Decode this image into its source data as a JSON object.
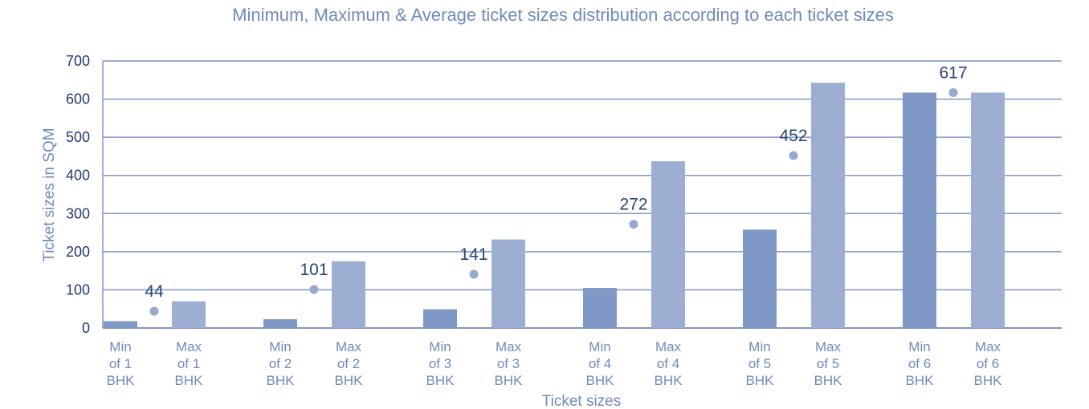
{
  "chart_data": {
    "type": "bar",
    "title": "Minimum, Maximum & Average ticket sizes distribution according to each ticket sizes",
    "xlabel": "Ticket sizes",
    "ylabel": "Ticket sizes in SQM",
    "ylim": [
      0,
      700
    ],
    "yticks": [
      0,
      100,
      200,
      300,
      400,
      500,
      600,
      700
    ],
    "grid": true,
    "groups": [
      {
        "min_label": [
          "Min",
          "of 1",
          "BHK"
        ],
        "max_label": [
          "Max",
          "of 1",
          "BHK"
        ],
        "min": 18,
        "max": 70,
        "avg": 44
      },
      {
        "min_label": [
          "Min",
          "of 2",
          "BHK"
        ],
        "max_label": [
          "Max",
          "of 2",
          "BHK"
        ],
        "min": 23,
        "max": 175,
        "avg": 101
      },
      {
        "min_label": [
          "Min",
          "of 3",
          "BHK"
        ],
        "max_label": [
          "Max",
          "of 3",
          "BHK"
        ],
        "min": 49,
        "max": 232,
        "avg": 141
      },
      {
        "min_label": [
          "Min",
          "of 4",
          "BHK"
        ],
        "max_label": [
          "Max",
          "of 4",
          "BHK"
        ],
        "min": 105,
        "max": 437,
        "avg": 272
      },
      {
        "min_label": [
          "Min",
          "of 5",
          "BHK"
        ],
        "max_label": [
          "Max",
          "of 5",
          "BHK"
        ],
        "min": 258,
        "max": 643,
        "avg": 452
      },
      {
        "min_label": [
          "Min",
          "of 6",
          "BHK"
        ],
        "max_label": [
          "Max",
          "of 6",
          "BHK"
        ],
        "min": 617,
        "max": 617,
        "avg": 617
      }
    ],
    "colors": {
      "min_bar": "#7F98C6",
      "max_bar": "#9CAFD3",
      "avg_dot": "#96A9CE",
      "grid": "#8096C2",
      "tick_text": "#1F3A6E",
      "cat_text": "#6F8BBC",
      "data_label": "#2A4478",
      "title": "#6F8BBC"
    }
  }
}
